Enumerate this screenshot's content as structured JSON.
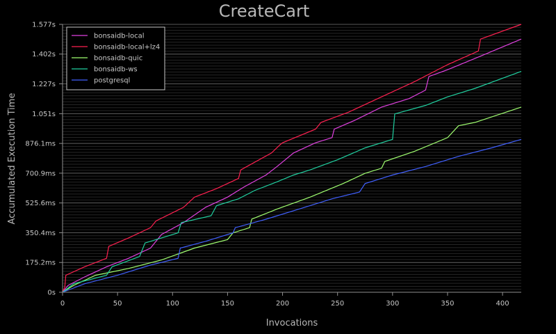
{
  "chart_data": {
    "type": "line",
    "title": "CreateCart",
    "xlabel": "Invocations",
    "ylabel": "Accumulated Execution Time",
    "xlim": [
      0,
      417
    ],
    "ylim": [
      0,
      1.577
    ],
    "x_ticks": [
      0,
      50,
      100,
      150,
      200,
      250,
      300,
      350,
      400
    ],
    "y_ticks": [
      {
        "value": 0,
        "label": "0s"
      },
      {
        "value": 0.1752,
        "label": "175.2ms"
      },
      {
        "value": 0.3504,
        "label": "350.4ms"
      },
      {
        "value": 0.5256,
        "label": "525.6ms"
      },
      {
        "value": 0.7009,
        "label": "700.9ms"
      },
      {
        "value": 0.8761,
        "label": "876.1ms"
      },
      {
        "value": 1.051,
        "label": "1.051s"
      },
      {
        "value": 1.227,
        "label": "1.227s"
      },
      {
        "value": 1.402,
        "label": "1.402s"
      },
      {
        "value": 1.577,
        "label": "1.577s"
      }
    ],
    "grid": true,
    "legend_position": "top-left",
    "series": [
      {
        "name": "bonsaidb-local",
        "color": "#e040e0",
        "points": [
          [
            0,
            0
          ],
          [
            5,
            0.04
          ],
          [
            20,
            0.09
          ],
          [
            40,
            0.15
          ],
          [
            60,
            0.2
          ],
          [
            80,
            0.26
          ],
          [
            90,
            0.34
          ],
          [
            110,
            0.41
          ],
          [
            130,
            0.5
          ],
          [
            150,
            0.56
          ],
          [
            165,
            0.62
          ],
          [
            185,
            0.69
          ],
          [
            195,
            0.74
          ],
          [
            210,
            0.82
          ],
          [
            230,
            0.88
          ],
          [
            245,
            0.91
          ],
          [
            247,
            0.96
          ],
          [
            265,
            1.01
          ],
          [
            290,
            1.09
          ],
          [
            315,
            1.14
          ],
          [
            330,
            1.19
          ],
          [
            333,
            1.27
          ],
          [
            350,
            1.31
          ],
          [
            380,
            1.39
          ],
          [
            417,
            1.49
          ]
        ]
      },
      {
        "name": "bonsaidb-local+lz4",
        "color": "#ff2050",
        "points": [
          [
            0,
            0
          ],
          [
            2,
            0.03
          ],
          [
            3,
            0.1
          ],
          [
            20,
            0.15
          ],
          [
            40,
            0.2
          ],
          [
            42,
            0.27
          ],
          [
            60,
            0.32
          ],
          [
            80,
            0.38
          ],
          [
            85,
            0.42
          ],
          [
            110,
            0.5
          ],
          [
            120,
            0.56
          ],
          [
            140,
            0.61
          ],
          [
            160,
            0.67
          ],
          [
            162,
            0.72
          ],
          [
            190,
            0.82
          ],
          [
            198,
            0.87
          ],
          [
            200,
            0.88
          ],
          [
            230,
            0.96
          ],
          [
            235,
            1.0
          ],
          [
            260,
            1.06
          ],
          [
            290,
            1.15
          ],
          [
            320,
            1.24
          ],
          [
            350,
            1.34
          ],
          [
            378,
            1.42
          ],
          [
            380,
            1.49
          ],
          [
            417,
            1.577
          ]
        ]
      },
      {
        "name": "bonsaidb-quic",
        "color": "#a0ff70",
        "points": [
          [
            0,
            0
          ],
          [
            10,
            0.04
          ],
          [
            30,
            0.1
          ],
          [
            60,
            0.14
          ],
          [
            90,
            0.19
          ],
          [
            120,
            0.26
          ],
          [
            150,
            0.31
          ],
          [
            155,
            0.35
          ],
          [
            170,
            0.38
          ],
          [
            172,
            0.43
          ],
          [
            195,
            0.49
          ],
          [
            225,
            0.56
          ],
          [
            255,
            0.64
          ],
          [
            275,
            0.7
          ],
          [
            290,
            0.73
          ],
          [
            293,
            0.77
          ],
          [
            320,
            0.83
          ],
          [
            350,
            0.91
          ],
          [
            360,
            0.98
          ],
          [
            375,
            1.0
          ],
          [
            417,
            1.09
          ]
        ]
      },
      {
        "name": "bonsaidb-ws",
        "color": "#20d0a0",
        "points": [
          [
            0,
            0
          ],
          [
            10,
            0.05
          ],
          [
            40,
            0.1
          ],
          [
            45,
            0.15
          ],
          [
            70,
            0.21
          ],
          [
            75,
            0.29
          ],
          [
            105,
            0.35
          ],
          [
            108,
            0.41
          ],
          [
            135,
            0.45
          ],
          [
            140,
            0.51
          ],
          [
            160,
            0.55
          ],
          [
            175,
            0.6
          ],
          [
            195,
            0.65
          ],
          [
            210,
            0.69
          ],
          [
            225,
            0.72
          ],
          [
            250,
            0.78
          ],
          [
            275,
            0.85
          ],
          [
            300,
            0.9
          ],
          [
            302,
            1.05
          ],
          [
            330,
            1.1
          ],
          [
            350,
            1.15
          ],
          [
            375,
            1.2
          ],
          [
            417,
            1.3
          ]
        ]
      },
      {
        "name": "postgresql",
        "color": "#4060ff",
        "points": [
          [
            0,
            0
          ],
          [
            20,
            0.05
          ],
          [
            50,
            0.1
          ],
          [
            80,
            0.16
          ],
          [
            105,
            0.2
          ],
          [
            107,
            0.26
          ],
          [
            130,
            0.3
          ],
          [
            155,
            0.35
          ],
          [
            157,
            0.38
          ],
          [
            185,
            0.43
          ],
          [
            215,
            0.49
          ],
          [
            245,
            0.55
          ],
          [
            270,
            0.59
          ],
          [
            275,
            0.64
          ],
          [
            300,
            0.69
          ],
          [
            330,
            0.74
          ],
          [
            360,
            0.8
          ],
          [
            390,
            0.85
          ],
          [
            417,
            0.9
          ]
        ]
      }
    ]
  }
}
